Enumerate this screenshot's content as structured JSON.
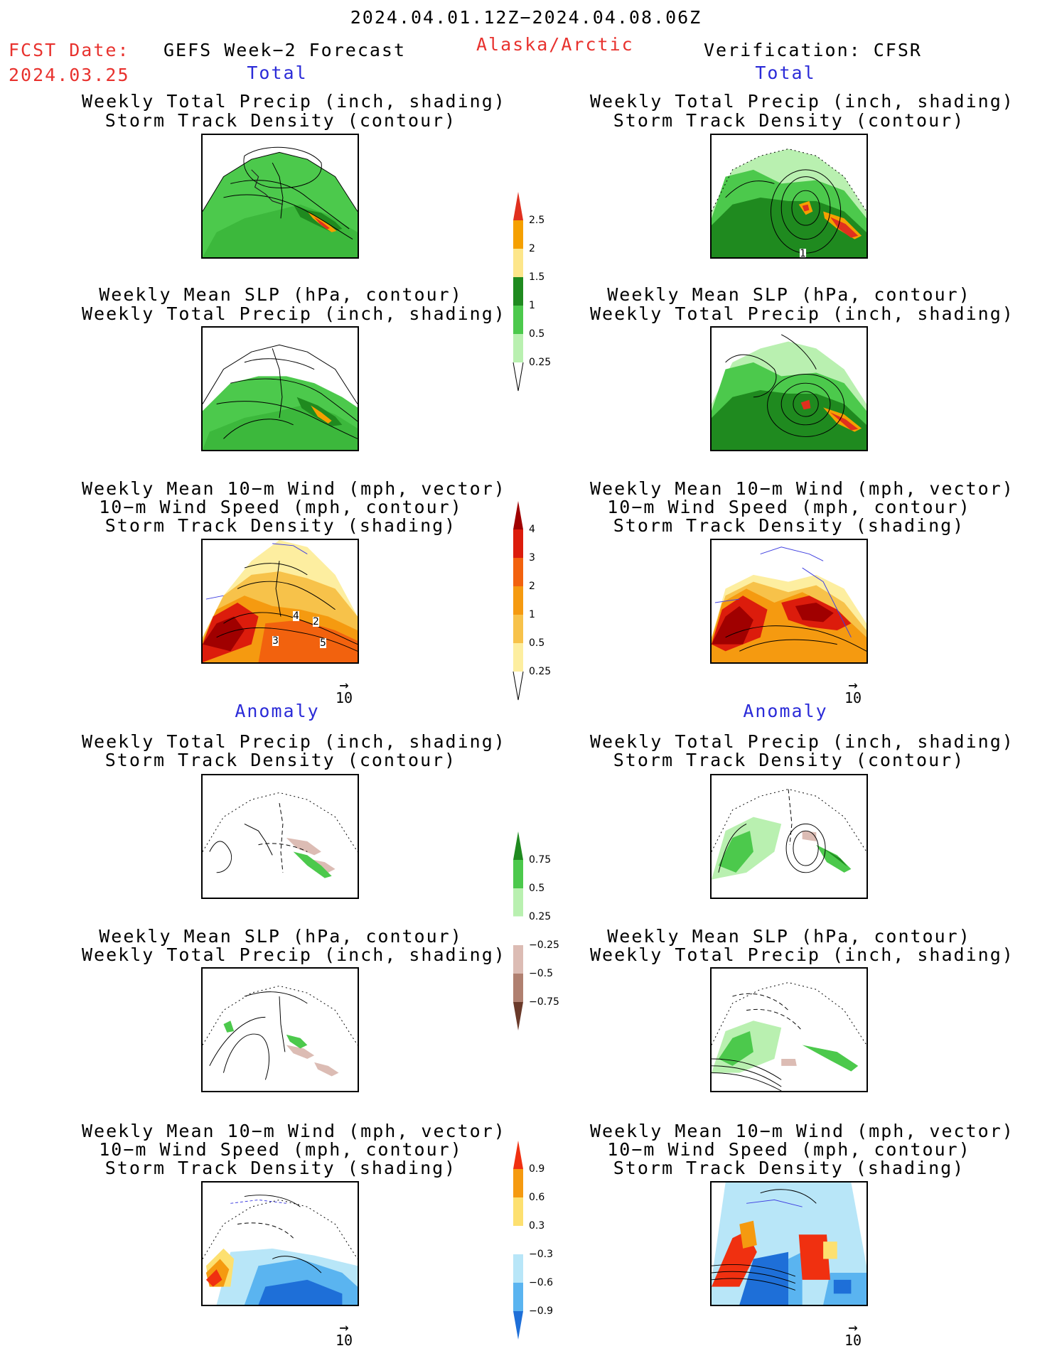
{
  "header": {
    "date_range": "2024.04.01.12Z−2024.04.08.06Z",
    "fcst_label": "FCST Date:",
    "fcst_date": "2024.03.25",
    "left_title": "GEFS Week−2 Forecast",
    "region": "Alaska/Arctic",
    "right_title": "Verification: CFSR"
  },
  "sections": {
    "total": "Total",
    "anomaly": "Anomaly"
  },
  "panels": {
    "precip_track": [
      "Weekly Total Precip (inch, shading)",
      "Storm Track Density (contour)"
    ],
    "slp_precip": [
      "Weekly Mean SLP (hPa, contour)",
      "Weekly Total Precip (inch, shading)"
    ],
    "wind_track": [
      "Weekly Mean 10−m Wind (mph, vector)",
      "10−m Wind Speed (mph, contour)",
      "Storm Track Density (shading)"
    ]
  },
  "vector_ref": "10",
  "colorbars": {
    "precip_total": {
      "labels": [
        "2.5",
        "2",
        "1.5",
        "1",
        "0.5",
        "0.25"
      ],
      "colors": [
        "#e0301e",
        "#f5a000",
        "#fde68a",
        "#1f8a1f",
        "#4cc94c",
        "#b9f0b0"
      ]
    },
    "track_total": {
      "labels": [
        "4",
        "3",
        "2",
        "1",
        "0.5",
        "0.25"
      ],
      "colors": [
        "#a00000",
        "#dc1c0c",
        "#f2620e",
        "#f59a10",
        "#f7c24a",
        "#fdeea0"
      ]
    },
    "precip_anom": {
      "labels": [
        "0.75",
        "0.5",
        "0.25",
        "−0.25",
        "−0.5",
        "−0.75"
      ],
      "colors_top": [
        "#1f8a1f",
        "#4cc94c",
        "#b9f0b0"
      ],
      "colors_bottom": [
        "#dcbcb4",
        "#b08070",
        "#6a3a2a"
      ]
    },
    "track_anom": {
      "labels": [
        "0.9",
        "0.6",
        "0.3",
        "−0.3",
        "−0.6",
        "−0.9"
      ],
      "colors_top": [
        "#f03010",
        "#f59a10",
        "#fde070"
      ],
      "colors_bottom": [
        "#b8e6f8",
        "#5ab4f0",
        "#1e6fd8"
      ]
    }
  },
  "map_labels": {
    "gefs_wind_values": [
      "4",
      "3",
      "2",
      "5"
    ],
    "cfsr_track_value": "1"
  },
  "colors": {
    "title_red": "#e8322e",
    "section_blue": "#2b2bd8"
  }
}
